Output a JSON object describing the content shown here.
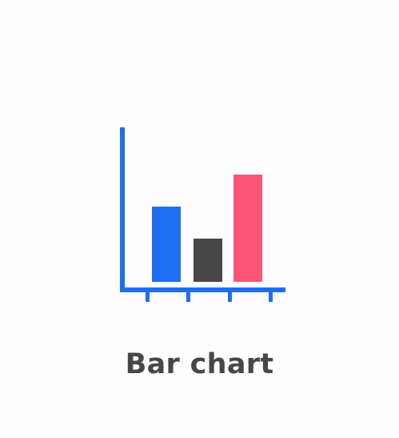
{
  "illustration": {
    "icon": "bar-chart-icon",
    "colors": {
      "axis": "#1f6ef0",
      "bars": [
        "#1f6ef0",
        "#474747",
        "#fd5577"
      ],
      "caption": "#474747",
      "background": "#fefefe"
    },
    "bar_levels": [
      0.49,
      0.28,
      0.7
    ]
  },
  "caption": {
    "text": "Bar chart"
  }
}
